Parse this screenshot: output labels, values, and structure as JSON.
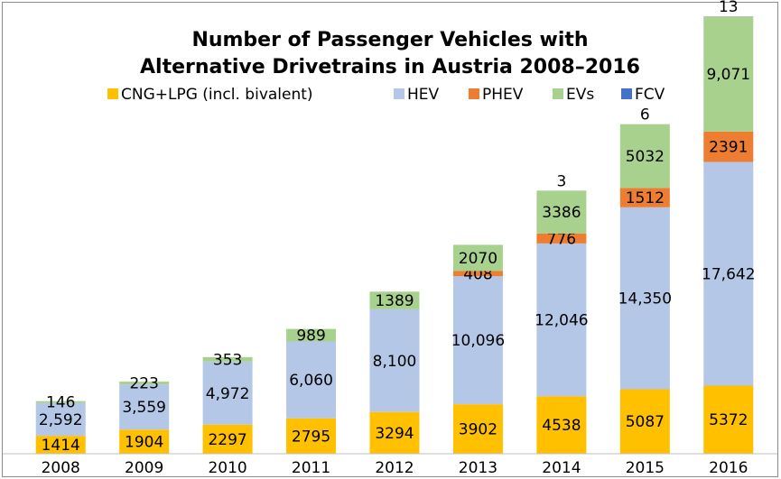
{
  "chart_data": {
    "type": "stacked-bar",
    "title": [
      "Number of Passenger Vehicles with",
      "Alternative Drivetrains in Austria 2008–2016"
    ],
    "categories": [
      "2008",
      "2009",
      "2010",
      "2011",
      "2012",
      "2013",
      "2014",
      "2015",
      "2016"
    ],
    "series": [
      {
        "name": "CNG+LPG (incl. bivalent)",
        "color": "#FFC000",
        "values": [
          1414,
          1904,
          2297,
          2795,
          3294,
          3902,
          4538,
          5087,
          5372
        ]
      },
      {
        "name": "HEV",
        "color": "#B4C7E7",
        "values": [
          2592,
          3559,
          4972,
          6060,
          8100,
          10096,
          12046,
          14350,
          17642
        ],
        "value_labels": [
          "2,592",
          "3,559",
          "4,972",
          "6,060",
          "8,100",
          "10,096",
          "12,046",
          "14,350",
          "17,642"
        ]
      },
      {
        "name": "PHEV",
        "color": "#ED7D31",
        "values": [
          null,
          null,
          null,
          null,
          null,
          408,
          776,
          1512,
          2391
        ]
      },
      {
        "name": "EVs",
        "color": "#A9D18E",
        "values": [
          146,
          223,
          353,
          989,
          1389,
          2070,
          3386,
          5032,
          9071
        ],
        "value_labels": [
          "146",
          "223",
          "353",
          "989",
          "1389",
          "2070",
          "3386",
          "5032",
          "9,071"
        ]
      },
      {
        "name": "FCV",
        "color": "#4472C4",
        "values": [
          null,
          null,
          null,
          null,
          null,
          null,
          3,
          6,
          13
        ]
      }
    ],
    "ylim": [
      0,
      35000
    ]
  }
}
